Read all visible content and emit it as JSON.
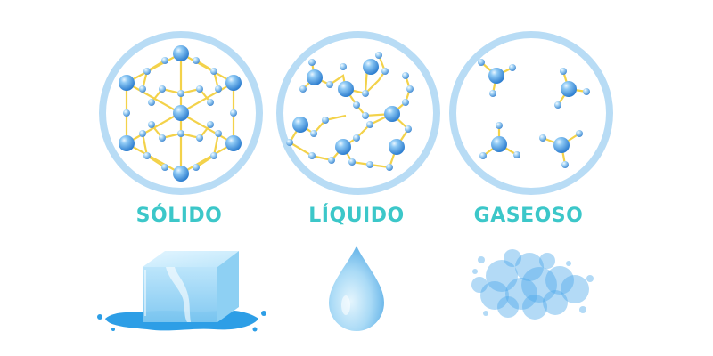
{
  "states": [
    {
      "label": "SÓLIDO",
      "name": "solid"
    },
    {
      "label": "LÍQUIDO",
      "name": "liquid"
    },
    {
      "label": "GASEOSO",
      "name": "gas"
    }
  ],
  "colors": {
    "label": "#3cc7c9",
    "ring": "#b8dcf5",
    "bond": "#f3d24a",
    "molecule": "#4a9fe0",
    "ice": "#a9dcf7",
    "water": "#2d9ee6",
    "vapor": "#4aa8ea"
  },
  "icons": [
    "ice-cube-icon",
    "water-drop-icon",
    "vapor-cloud-icon"
  ]
}
